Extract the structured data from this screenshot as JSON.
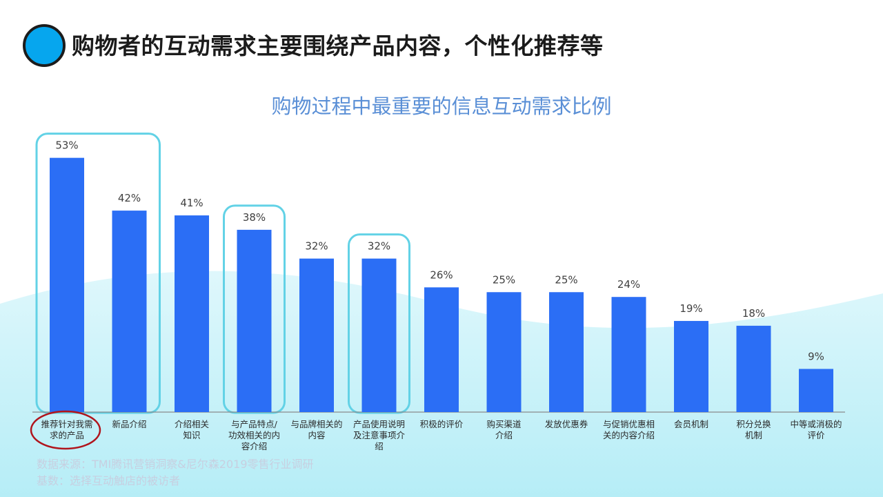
{
  "page": {
    "title": "购物者的互动需求主要围绕产品内容，个性化推荐等"
  },
  "footnotes": {
    "source": "数据来源：TMI腾讯营销洞察&尼尔森2019零售行业调研",
    "base": "基数：选择互动触店的被访者"
  },
  "colors": {
    "bar": "#2b6ef5",
    "highlight_box": "#62d2e6",
    "highlight_circle": "#b0151d",
    "chart_title": "#5a8fd6",
    "header_dot": "#06a6ee",
    "wave": "#c9f1f8"
  },
  "chart_data": {
    "type": "bar",
    "title": "购物过程中最重要的信息互动需求比例",
    "xlabel": "",
    "ylabel": "",
    "ylim": [
      0,
      60
    ],
    "grid": false,
    "categories": [
      [
        "推荐针对我需",
        "求的产品"
      ],
      [
        "新品介绍"
      ],
      [
        "介绍相关",
        "知识"
      ],
      [
        "与产品特点/",
        "功效相关的内",
        "容介绍"
      ],
      [
        "与品牌相关的",
        "内容"
      ],
      [
        "产品使用说明",
        "及注意事项介",
        "绍"
      ],
      [
        "积极的评价"
      ],
      [
        "购买渠道",
        "介绍"
      ],
      [
        "发放优惠券"
      ],
      [
        "与促销优惠相",
        "关的内容介绍"
      ],
      [
        "会员机制"
      ],
      [
        "积分兑换",
        "机制"
      ],
      [
        "中等或消极的",
        "评价"
      ]
    ],
    "values": [
      53,
      42,
      41,
      38,
      32,
      32,
      26,
      25,
      25,
      24,
      19,
      18,
      9
    ],
    "value_labels": [
      "53%",
      "42%",
      "41%",
      "38%",
      "32%",
      "32%",
      "26%",
      "25%",
      "25%",
      "24%",
      "19%",
      "18%",
      "9%"
    ],
    "highlight_groups": [
      [
        0,
        1
      ],
      [
        3
      ],
      [
        5
      ]
    ],
    "circled_label": 0
  }
}
